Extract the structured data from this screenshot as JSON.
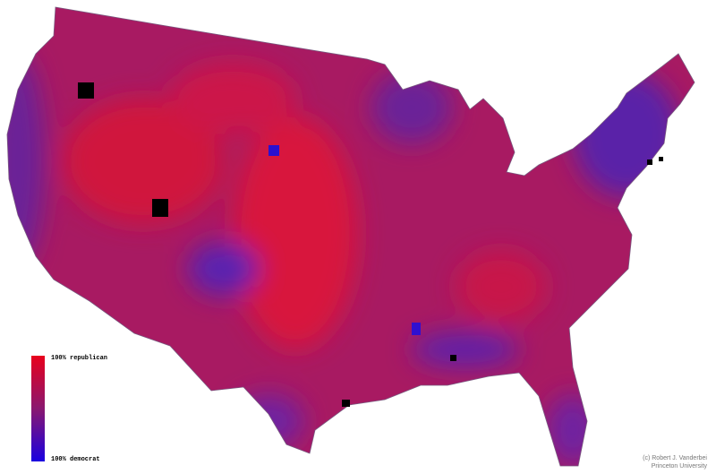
{
  "legend": {
    "top_label": "100% republican",
    "bottom_label": "100% democrat"
  },
  "credit": {
    "line1": "(c) Robert J. Vanderbei",
    "line2": "Princeton University"
  }
}
